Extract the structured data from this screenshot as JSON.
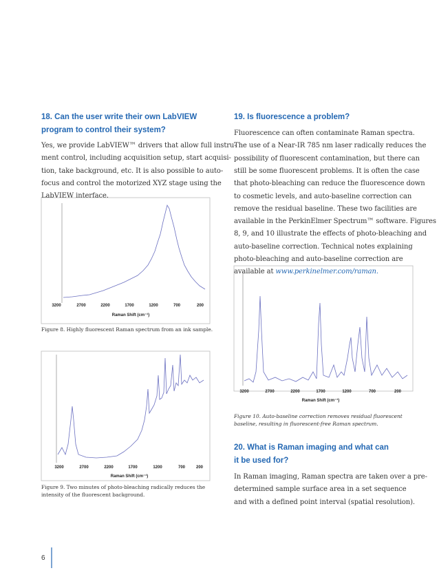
{
  "section18": {
    "heading": [
      "18. Can the user write their own LabVIEW",
      "program to control their system?"
    ],
    "body": [
      "Yes, we provide LabVIEW™ drivers that allow full instru-",
      "ment control, including acquisition setup, start acquisi-",
      "tion, take background, etc. It is also possible to auto-",
      "focus and control the motorized XYZ stage using the",
      "LabVIEW interface."
    ]
  },
  "section19": {
    "heading": [
      "19. Is fluorescence a problem?"
    ],
    "body": [
      "Fluorescence can often contaminate Raman spectra.",
      "The use of a Near-IR 785 nm laser radically reduces the",
      "possibility of fluorescent contamination, but there can",
      "still be some fluorescent problems. It is often the case",
      "that photo-bleaching can reduce the fluorescence down",
      "to cosmetic levels, and auto-baseline correction can",
      "remove the residual baseline. These two facilities are",
      "available in the PerkinElmer Spectrum™ software. Figures",
      "8, 9, and 10 illustrate the effects of photo-bleaching and",
      "auto-baseline correction. Technical notes explaining",
      "photo-bleaching and auto-baseline correction are",
      "available at"
    ],
    "link": "www.perkinelmer.com/raman."
  },
  "section20": {
    "heading": [
      "20. What is Raman imaging and what can",
      "it be used for?"
    ],
    "body": [
      "In Raman imaging, Raman spectra are taken over a pre-",
      "determined sample surface area in a set sequence",
      "and with a defined point interval (spatial resolution)."
    ]
  },
  "figures": [
    {
      "xticks": [
        "3200",
        "2700",
        "2200",
        "1700",
        "1200",
        "700",
        "200"
      ],
      "xlabel": "Raman Shift (cm⁻¹)",
      "caption": [
        "Figure 8. Highly fluorescent Raman spectrum from an ink sample."
      ]
    },
    {
      "xticks": [
        "3200",
        "2700",
        "2200",
        "1700",
        "1200",
        "700",
        "200"
      ],
      "xlabel": "Raman Shift (cm⁻¹)",
      "caption": [
        "Figure 9. Two minutes of photo-bleaching radically reduces the",
        "intensity of the fluorescent background."
      ]
    },
    {
      "xticks": [
        "3200",
        "2700",
        "2200",
        "1700",
        "1200",
        "700",
        "200"
      ],
      "xlabel": "Raman Shift (cm⁻¹)",
      "caption": [
        "Figure 10.  Auto-baseline correction removes residual fluorescent",
        "baseline, resulting in fluorescent-free Raman spectrum."
      ]
    }
  ],
  "page_number": "6"
}
